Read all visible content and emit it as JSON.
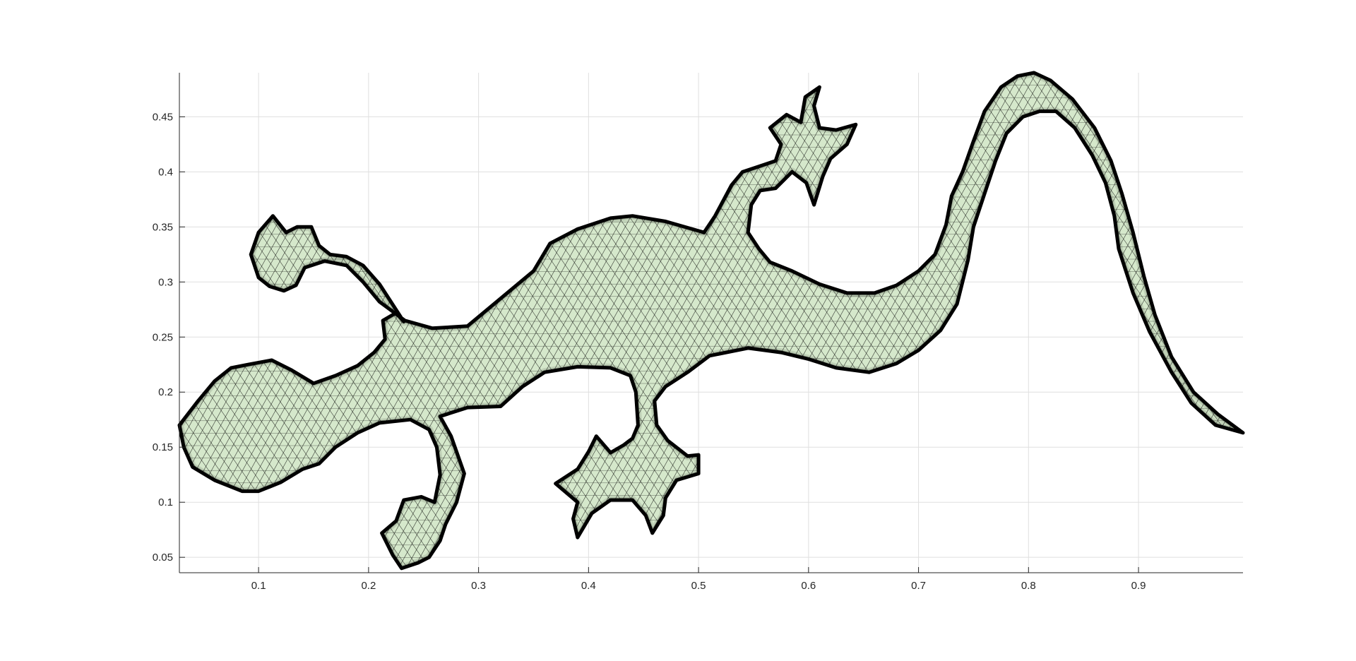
{
  "chart_data": {
    "type": "mesh",
    "title": "",
    "xlabel": "",
    "ylabel": "",
    "xlim": [
      0.028,
      0.995
    ],
    "ylim": [
      0.036,
      0.49
    ],
    "grid": true,
    "box": "left-bottom",
    "colors": {
      "face": "#d5e8cb",
      "edge": "#000000",
      "axis": "#262626",
      "grid": "#dfdfdf"
    },
    "xticks": [
      {
        "value": 0.1,
        "label": "0.1"
      },
      {
        "value": 0.2,
        "label": "0.2"
      },
      {
        "value": 0.3,
        "label": "0.3"
      },
      {
        "value": 0.4,
        "label": "0.4"
      },
      {
        "value": 0.5,
        "label": "0.5"
      },
      {
        "value": 0.6,
        "label": "0.6"
      },
      {
        "value": 0.7,
        "label": "0.7"
      },
      {
        "value": 0.8,
        "label": "0.8"
      },
      {
        "value": 0.9,
        "label": "0.9"
      }
    ],
    "yticks": [
      {
        "value": 0.05,
        "label": "0.05"
      },
      {
        "value": 0.1,
        "label": "0.1"
      },
      {
        "value": 0.15,
        "label": "0.15"
      },
      {
        "value": 0.2,
        "label": "0.2"
      },
      {
        "value": 0.25,
        "label": "0.25"
      },
      {
        "value": 0.3,
        "label": "0.3"
      },
      {
        "value": 0.35,
        "label": "0.35"
      },
      {
        "value": 0.4,
        "label": "0.4"
      },
      {
        "value": 0.45,
        "label": "0.45"
      }
    ],
    "outline": [
      [
        0.028,
        0.17
      ],
      [
        0.045,
        0.192
      ],
      [
        0.06,
        0.21
      ],
      [
        0.075,
        0.222
      ],
      [
        0.09,
        0.225
      ],
      [
        0.112,
        0.229
      ],
      [
        0.13,
        0.22
      ],
      [
        0.15,
        0.208
      ],
      [
        0.17,
        0.215
      ],
      [
        0.19,
        0.224
      ],
      [
        0.205,
        0.236
      ],
      [
        0.215,
        0.248
      ],
      [
        0.213,
        0.265
      ],
      [
        0.225,
        0.272
      ],
      [
        0.232,
        0.264
      ],
      [
        0.21,
        0.298
      ],
      [
        0.195,
        0.315
      ],
      [
        0.18,
        0.323
      ],
      [
        0.165,
        0.325
      ],
      [
        0.155,
        0.333
      ],
      [
        0.148,
        0.35
      ],
      [
        0.135,
        0.35
      ],
      [
        0.125,
        0.345
      ],
      [
        0.113,
        0.36
      ],
      [
        0.1,
        0.345
      ],
      [
        0.093,
        0.325
      ],
      [
        0.1,
        0.304
      ],
      [
        0.11,
        0.296
      ],
      [
        0.123,
        0.292
      ],
      [
        0.134,
        0.297
      ],
      [
        0.142,
        0.313
      ],
      [
        0.16,
        0.319
      ],
      [
        0.18,
        0.315
      ],
      [
        0.195,
        0.3
      ],
      [
        0.21,
        0.282
      ],
      [
        0.233,
        0.265
      ],
      [
        0.258,
        0.258
      ],
      [
        0.29,
        0.26
      ],
      [
        0.32,
        0.285
      ],
      [
        0.35,
        0.31
      ],
      [
        0.365,
        0.335
      ],
      [
        0.39,
        0.348
      ],
      [
        0.42,
        0.358
      ],
      [
        0.44,
        0.36
      ],
      [
        0.47,
        0.355
      ],
      [
        0.505,
        0.345
      ],
      [
        0.515,
        0.36
      ],
      [
        0.53,
        0.388
      ],
      [
        0.54,
        0.4
      ],
      [
        0.555,
        0.405
      ],
      [
        0.57,
        0.41
      ],
      [
        0.575,
        0.425
      ],
      [
        0.565,
        0.44
      ],
      [
        0.58,
        0.452
      ],
      [
        0.593,
        0.445
      ],
      [
        0.597,
        0.468
      ],
      [
        0.61,
        0.477
      ],
      [
        0.605,
        0.46
      ],
      [
        0.61,
        0.44
      ],
      [
        0.625,
        0.438
      ],
      [
        0.643,
        0.443
      ],
      [
        0.635,
        0.425
      ],
      [
        0.62,
        0.412
      ],
      [
        0.613,
        0.396
      ],
      [
        0.605,
        0.37
      ],
      [
        0.598,
        0.39
      ],
      [
        0.585,
        0.4
      ],
      [
        0.57,
        0.385
      ],
      [
        0.556,
        0.383
      ],
      [
        0.548,
        0.37
      ],
      [
        0.545,
        0.345
      ],
      [
        0.555,
        0.33
      ],
      [
        0.565,
        0.318
      ],
      [
        0.585,
        0.31
      ],
      [
        0.61,
        0.298
      ],
      [
        0.635,
        0.29
      ],
      [
        0.66,
        0.29
      ],
      [
        0.68,
        0.297
      ],
      [
        0.7,
        0.31
      ],
      [
        0.715,
        0.325
      ],
      [
        0.725,
        0.352
      ],
      [
        0.73,
        0.378
      ],
      [
        0.74,
        0.4
      ],
      [
        0.75,
        0.428
      ],
      [
        0.76,
        0.455
      ],
      [
        0.775,
        0.477
      ],
      [
        0.79,
        0.487
      ],
      [
        0.805,
        0.49
      ],
      [
        0.82,
        0.483
      ],
      [
        0.84,
        0.466
      ],
      [
        0.86,
        0.44
      ],
      [
        0.875,
        0.41
      ],
      [
        0.885,
        0.38
      ],
      [
        0.895,
        0.345
      ],
      [
        0.905,
        0.305
      ],
      [
        0.915,
        0.27
      ],
      [
        0.93,
        0.232
      ],
      [
        0.95,
        0.2
      ],
      [
        0.972,
        0.18
      ],
      [
        0.995,
        0.163
      ],
      [
        0.97,
        0.17
      ],
      [
        0.948,
        0.19
      ],
      [
        0.93,
        0.218
      ],
      [
        0.91,
        0.255
      ],
      [
        0.895,
        0.29
      ],
      [
        0.882,
        0.33
      ],
      [
        0.878,
        0.36
      ],
      [
        0.87,
        0.39
      ],
      [
        0.858,
        0.415
      ],
      [
        0.842,
        0.44
      ],
      [
        0.825,
        0.455
      ],
      [
        0.81,
        0.455
      ],
      [
        0.795,
        0.45
      ],
      [
        0.78,
        0.435
      ],
      [
        0.77,
        0.41
      ],
      [
        0.76,
        0.38
      ],
      [
        0.75,
        0.35
      ],
      [
        0.745,
        0.32
      ],
      [
        0.735,
        0.28
      ],
      [
        0.72,
        0.256
      ],
      [
        0.7,
        0.238
      ],
      [
        0.68,
        0.226
      ],
      [
        0.655,
        0.218
      ],
      [
        0.625,
        0.222
      ],
      [
        0.6,
        0.23
      ],
      [
        0.575,
        0.236
      ],
      [
        0.545,
        0.24
      ],
      [
        0.51,
        0.233
      ],
      [
        0.49,
        0.218
      ],
      [
        0.47,
        0.205
      ],
      [
        0.46,
        0.192
      ],
      [
        0.462,
        0.17
      ],
      [
        0.472,
        0.156
      ],
      [
        0.49,
        0.142
      ],
      [
        0.5,
        0.143
      ],
      [
        0.5,
        0.126
      ],
      [
        0.48,
        0.12
      ],
      [
        0.47,
        0.104
      ],
      [
        0.468,
        0.088
      ],
      [
        0.458,
        0.072
      ],
      [
        0.452,
        0.088
      ],
      [
        0.44,
        0.102
      ],
      [
        0.42,
        0.102
      ],
      [
        0.403,
        0.09
      ],
      [
        0.39,
        0.068
      ],
      [
        0.386,
        0.085
      ],
      [
        0.39,
        0.1
      ],
      [
        0.37,
        0.117
      ],
      [
        0.39,
        0.13
      ],
      [
        0.4,
        0.146
      ],
      [
        0.407,
        0.16
      ],
      [
        0.42,
        0.145
      ],
      [
        0.432,
        0.152
      ],
      [
        0.44,
        0.158
      ],
      [
        0.445,
        0.17
      ],
      [
        0.443,
        0.2
      ],
      [
        0.438,
        0.215
      ],
      [
        0.42,
        0.222
      ],
      [
        0.39,
        0.223
      ],
      [
        0.36,
        0.218
      ],
      [
        0.34,
        0.205
      ],
      [
        0.32,
        0.187
      ],
      [
        0.29,
        0.186
      ],
      [
        0.265,
        0.178
      ],
      [
        0.275,
        0.16
      ],
      [
        0.287,
        0.126
      ],
      [
        0.28,
        0.1
      ],
      [
        0.27,
        0.08
      ],
      [
        0.265,
        0.065
      ],
      [
        0.255,
        0.05
      ],
      [
        0.245,
        0.045
      ],
      [
        0.23,
        0.04
      ],
      [
        0.222,
        0.052
      ],
      [
        0.212,
        0.072
      ],
      [
        0.225,
        0.083
      ],
      [
        0.232,
        0.102
      ],
      [
        0.248,
        0.105
      ],
      [
        0.26,
        0.1
      ],
      [
        0.265,
        0.125
      ],
      [
        0.262,
        0.15
      ],
      [
        0.255,
        0.166
      ],
      [
        0.238,
        0.175
      ],
      [
        0.21,
        0.172
      ],
      [
        0.19,
        0.163
      ],
      [
        0.17,
        0.15
      ],
      [
        0.155,
        0.135
      ],
      [
        0.14,
        0.13
      ],
      [
        0.12,
        0.118
      ],
      [
        0.1,
        0.11
      ],
      [
        0.085,
        0.11
      ],
      [
        0.06,
        0.12
      ],
      [
        0.04,
        0.132
      ],
      [
        0.032,
        0.15
      ]
    ]
  }
}
